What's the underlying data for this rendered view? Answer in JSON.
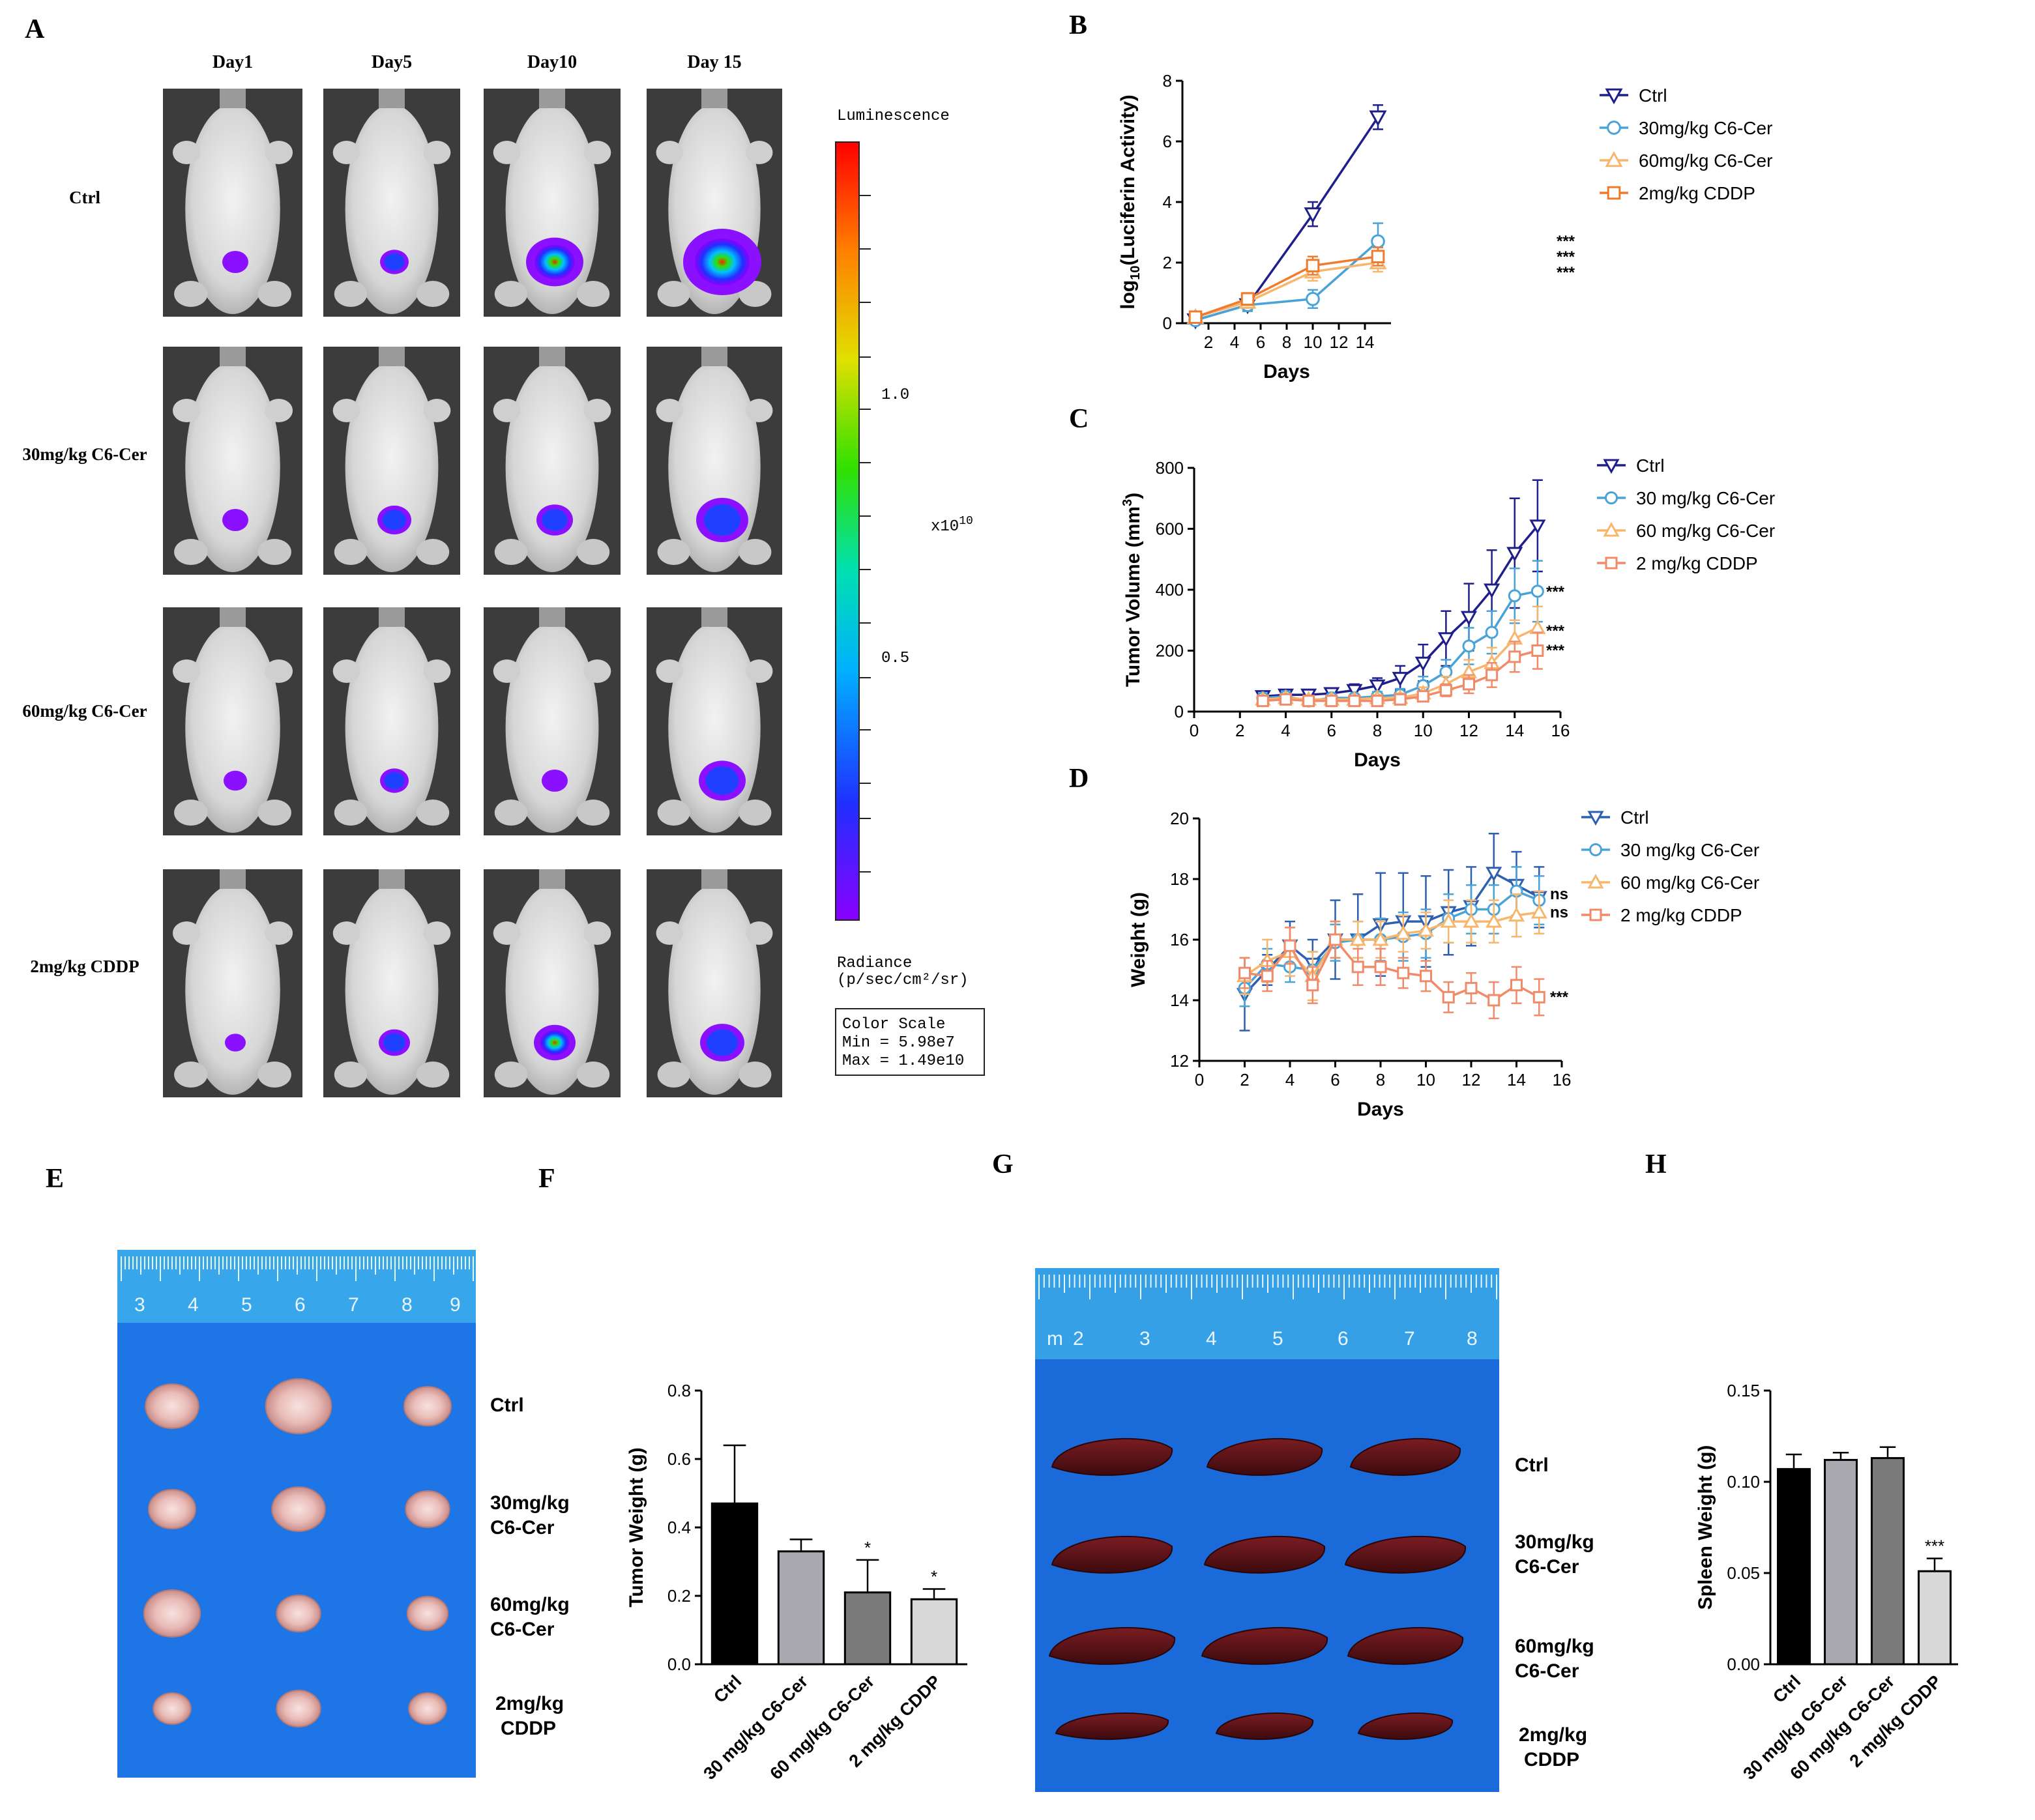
{
  "panel_letters": {
    "a": "A",
    "b": "B",
    "c": "C",
    "d": "D",
    "e": "E",
    "f": "F",
    "g": "G",
    "h": "H"
  },
  "colors": {
    "ctrl": "#1f1f8c",
    "c6_30": "#4aa3d8",
    "c6_60": "#f7b66c",
    "cddp": "#ef7b2f",
    "cddp_light": "#f08a68",
    "ctrl_blue": "#2f5fb0",
    "ruler": "#2e9fe0",
    "tray": "#1a6fe0"
  },
  "imaging": {
    "days": [
      "Day1",
      "Day5",
      "Day10",
      "Day 15"
    ],
    "groups": [
      "Ctrl",
      "30mg/kg C6-Cer",
      "60mg/kg C6-Cer",
      "2mg/kg CDDP"
    ],
    "colorbar": {
      "title": "Luminescence",
      "tick_high": "1.0",
      "tick_low": "0.5",
      "multiplier": "x10",
      "exponent": "10",
      "radiance_line1": "Radiance",
      "radiance_line2": "(p/sec/cm²/sr)",
      "scale_title": "Color Scale",
      "scale_min": "Min = 5.98e7",
      "scale_max": "Max = 1.49e10"
    }
  },
  "chart_data": [
    {
      "id": "B",
      "type": "line",
      "xlabel": "Days",
      "ylabel": "log10(Luciferin Activity)",
      "xlim": [
        0,
        16
      ],
      "ylim": [
        0,
        8
      ],
      "xticks": [
        "2",
        "4",
        "6",
        "8",
        "10",
        "12",
        "14"
      ],
      "yticks": [
        "0",
        "2",
        "4",
        "6",
        "8"
      ],
      "x": [
        1,
        5,
        10,
        15
      ],
      "series": [
        {
          "name": "Ctrl",
          "values": [
            0.1,
            0.6,
            3.6,
            6.8
          ],
          "err": [
            0.1,
            0.2,
            0.4,
            0.4
          ]
        },
        {
          "name": "30mg/kg C6-Cer",
          "values": [
            0.1,
            0.6,
            0.8,
            2.7
          ],
          "err": [
            0.1,
            0.2,
            0.3,
            0.6
          ]
        },
        {
          "name": "60mg/kg C6-Cer",
          "values": [
            0.2,
            0.7,
            1.7,
            2.0
          ],
          "err": [
            0.1,
            0.2,
            0.3,
            0.3
          ]
        },
        {
          "name": "2mg/kg CDDP",
          "values": [
            0.2,
            0.8,
            1.9,
            2.2
          ],
          "err": [
            0.1,
            0.2,
            0.3,
            0.3
          ]
        }
      ],
      "annotations": [
        "***",
        "***",
        "***"
      ]
    },
    {
      "id": "C",
      "type": "line",
      "xlabel": "Days",
      "ylabel": "Tumor Volume (mm3)",
      "ylabel_main": "Tumor Volume (mm",
      "ylabel_sup": "3",
      "ylabel_close": ")",
      "xlim": [
        0,
        16
      ],
      "ylim": [
        0,
        800
      ],
      "xticks": [
        "0",
        "2",
        "4",
        "6",
        "8",
        "10",
        "12",
        "14",
        "16"
      ],
      "yticks": [
        "0",
        "200",
        "400",
        "600",
        "800"
      ],
      "x": [
        3,
        4,
        5,
        6,
        7,
        8,
        9,
        10,
        11,
        12,
        13,
        14,
        15
      ],
      "series": [
        {
          "name": "Ctrl",
          "values": [
            50,
            55,
            55,
            60,
            70,
            85,
            110,
            160,
            240,
            310,
            400,
            520,
            610
          ],
          "err": [
            10,
            10,
            10,
            15,
            20,
            25,
            40,
            60,
            90,
            110,
            130,
            180,
            150
          ]
        },
        {
          "name": "30 mg/kg C6-Cer",
          "values": [
            45,
            50,
            35,
            45,
            45,
            50,
            55,
            85,
            130,
            215,
            260,
            380,
            395
          ],
          "err": [
            10,
            10,
            10,
            10,
            10,
            15,
            20,
            30,
            40,
            60,
            70,
            90,
            100
          ]
        },
        {
          "name": "60 mg/kg C6-Cer",
          "values": [
            40,
            45,
            40,
            40,
            40,
            45,
            45,
            60,
            90,
            130,
            160,
            240,
            275
          ],
          "err": [
            10,
            10,
            10,
            10,
            10,
            10,
            15,
            20,
            25,
            40,
            50,
            60,
            70
          ]
        },
        {
          "name": "2 mg/kg CDDP",
          "values": [
            35,
            40,
            35,
            35,
            35,
            35,
            40,
            50,
            70,
            90,
            120,
            180,
            200
          ],
          "err": [
            8,
            8,
            8,
            8,
            8,
            10,
            10,
            15,
            20,
            30,
            40,
            50,
            60
          ]
        }
      ],
      "annotations": [
        "***",
        "***",
        "***"
      ]
    },
    {
      "id": "D",
      "type": "line",
      "xlabel": "Days",
      "ylabel": "Weight (g)",
      "xlim": [
        0,
        16
      ],
      "ylim": [
        12,
        20
      ],
      "xticks": [
        "0",
        "2",
        "4",
        "6",
        "8",
        "10",
        "12",
        "14",
        "16"
      ],
      "yticks": [
        "12",
        "14",
        "16",
        "18",
        "20"
      ],
      "x": [
        2,
        3,
        4,
        5,
        6,
        7,
        8,
        9,
        10,
        11,
        12,
        13,
        14,
        15
      ],
      "series": [
        {
          "name": "Ctrl",
          "values": [
            14.2,
            15.0,
            15.8,
            15.2,
            16.0,
            16.0,
            16.5,
            16.6,
            16.6,
            16.9,
            17.1,
            18.2,
            17.8,
            17.4
          ],
          "err": [
            1.2,
            0.5,
            0.8,
            0.8,
            1.3,
            1.5,
            1.7,
            1.6,
            1.5,
            1.4,
            1.3,
            1.3,
            1.1,
            1.0
          ]
        },
        {
          "name": "30 mg/kg C6-Cer",
          "values": [
            14.4,
            15.2,
            15.1,
            15.0,
            15.9,
            16.0,
            16.0,
            16.1,
            16.2,
            16.7,
            17.0,
            17.0,
            17.6,
            17.3
          ],
          "err": [
            0.6,
            0.5,
            0.5,
            0.6,
            0.6,
            0.6,
            0.7,
            0.8,
            0.8,
            0.8,
            0.8,
            0.8,
            0.8,
            0.8
          ]
        },
        {
          "name": "60 mg/kg C6-Cer",
          "values": [
            14.8,
            15.3,
            15.6,
            14.8,
            16.0,
            16.0,
            16.0,
            16.2,
            16.3,
            16.6,
            16.6,
            16.6,
            16.8,
            16.9
          ],
          "err": [
            0.6,
            0.7,
            0.8,
            0.8,
            0.6,
            0.6,
            0.6,
            0.6,
            0.6,
            0.7,
            0.7,
            0.7,
            0.7,
            0.7
          ]
        },
        {
          "name": "2 mg/kg CDDP",
          "values": [
            14.9,
            14.8,
            15.8,
            14.5,
            16.0,
            15.1,
            15.1,
            14.9,
            14.8,
            14.1,
            14.4,
            14.0,
            14.5,
            14.1
          ],
          "err": [
            0.5,
            0.5,
            0.6,
            0.6,
            0.6,
            0.6,
            0.6,
            0.5,
            0.5,
            0.5,
            0.5,
            0.6,
            0.6,
            0.6
          ]
        }
      ],
      "annotations": [
        "ns",
        "ns",
        "***"
      ]
    },
    {
      "id": "F",
      "type": "bar",
      "ylabel": "Tumor Weight (g)",
      "ylim": [
        0,
        0.8
      ],
      "yticks": [
        "0.0",
        "0.2",
        "0.4",
        "0.6",
        "0.8"
      ],
      "categories": [
        "Ctrl",
        "30 mg/kg C6-Cer",
        "60 mg/kg C6-Cer",
        "2 mg/kg CDDP"
      ],
      "values": [
        0.47,
        0.33,
        0.21,
        0.19
      ],
      "err": [
        0.17,
        0.035,
        0.095,
        0.03
      ],
      "annotations": [
        "",
        "",
        "*",
        "*"
      ]
    },
    {
      "id": "H",
      "type": "bar",
      "ylabel": "Spleen Weight (g)",
      "ylim": [
        0,
        0.15
      ],
      "yticks": [
        "0.00",
        "0.05",
        "0.10",
        "0.15"
      ],
      "categories": [
        "Ctrl",
        "30 mg/kg C6-Cer",
        "60 mg/kg C6-Cer",
        "2 mg/kg CDDP"
      ],
      "values": [
        0.107,
        0.112,
        0.113,
        0.051
      ],
      "err": [
        0.008,
        0.004,
        0.006,
        0.007
      ],
      "annotations": [
        "",
        "",
        "",
        "***"
      ]
    }
  ],
  "tumor_photo": {
    "ruler_numbers": [
      "3",
      "4",
      "5",
      "6",
      "7",
      "8",
      "9"
    ],
    "labels": [
      "Ctrl",
      "30mg/kg",
      "C6-Cer",
      "60mg/kg",
      "C6-Cer",
      "2mg/kg",
      "CDDP"
    ]
  },
  "spleen_photo": {
    "ruler_numbers": [
      "2",
      "3",
      "4",
      "5",
      "6",
      "7",
      "8"
    ],
    "ruler_unit": "m",
    "labels": [
      "Ctrl",
      "30mg/kg",
      "C6-Cer",
      "60mg/kg",
      "C6-Cer",
      "2mg/kg",
      "CDDP"
    ]
  }
}
